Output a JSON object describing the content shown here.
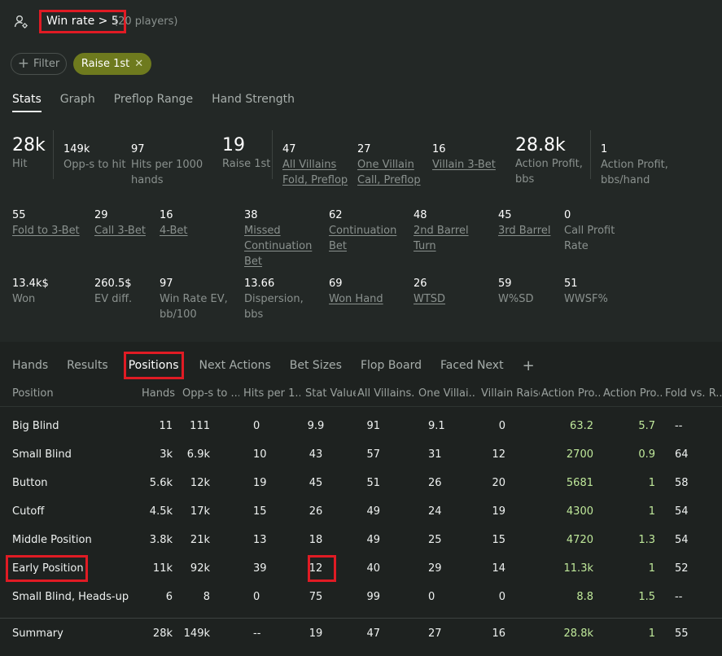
{
  "header": {
    "filter_title": "Win rate > 5",
    "players": "(20 players)",
    "filter_button": "Filter",
    "chip": "Raise 1st"
  },
  "subtabs": [
    "Stats",
    "Graph",
    "Preflop Range",
    "Hand Strength"
  ],
  "stats": {
    "hit": {
      "value": "28k",
      "label": "Hit"
    },
    "opps": {
      "value": "149k",
      "label": "Opp-s to hit"
    },
    "hits1000": {
      "value": "97",
      "label1": "Hits per 1000",
      "label2": "hands"
    },
    "raise1st": {
      "value": "19",
      "label": "Raise 1st"
    },
    "allvil": {
      "value": "47",
      "label1": "All Villains",
      "label2": "Fold, Preflop"
    },
    "onevil": {
      "value": "27",
      "label1": "One Villain",
      "label2": "Call, Preflop"
    },
    "vil3bet": {
      "value": "16",
      "label": "Villain 3-Bet"
    },
    "actprofit": {
      "value": "28.8k",
      "label1": "Action Profit,",
      "label2": "bbs"
    },
    "actprofhand": {
      "value": "1",
      "label1": "Action Profit,",
      "label2": "bbs/hand"
    },
    "fold3bet": {
      "value": "55",
      "label": "Fold to 3-Bet"
    },
    "call3bet": {
      "value": "29",
      "label": "Call 3-Bet"
    },
    "fourbet": {
      "value": "16",
      "label": "4-Bet"
    },
    "missedcb": {
      "value": "38",
      "label1": "Missed",
      "label2": "Continuation",
      "label3": "Bet"
    },
    "contbet": {
      "value": "62",
      "label1": "Continuation",
      "label2": "Bet"
    },
    "barrel2": {
      "value": "48",
      "label1": "2nd Barrel",
      "label2": "Turn"
    },
    "barrel3": {
      "value": "45",
      "label": "3rd Barrel"
    },
    "callprofit": {
      "value": "0",
      "label1": "Call Profit",
      "label2": "Rate"
    },
    "won": {
      "value": "13.4k$",
      "label": "Won"
    },
    "evdiff": {
      "value": "260.5$",
      "label": "EV diff."
    },
    "wrev": {
      "value": "97",
      "label1": "Win Rate EV,",
      "label2": "bb/100"
    },
    "dispersion": {
      "value": "13.66",
      "label1": "Dispersion,",
      "label2": "bbs"
    },
    "wonhand": {
      "value": "69",
      "label": "Won Hand"
    },
    "wtsd": {
      "value": "26",
      "label": "WTSD"
    },
    "wsd": {
      "value": "59",
      "label": "W%SD"
    },
    "wwsf": {
      "value": "51",
      "label": "WWSF%"
    }
  },
  "bottom_tabs": [
    "Hands",
    "Results",
    "Positions",
    "Next Actions",
    "Bet Sizes",
    "Flop Board",
    "Faced Next"
  ],
  "table": {
    "headers": [
      "Position",
      "Hands",
      "Opp-s to ...",
      "Hits per 1...",
      "Stat Value",
      "All Villains...",
      "One Villai...",
      "Villain Raise",
      "Action Pro...",
      "Action Pro...",
      "Fold vs. R..."
    ],
    "rows": [
      [
        "Big Blind",
        "11",
        "111",
        "0",
        "9.9",
        "91",
        "9.1",
        "0",
        "63.2",
        "5.7",
        "--"
      ],
      [
        "Small Blind",
        "3k",
        "6.9k",
        "10",
        "43",
        "57",
        "31",
        "12",
        "2700",
        "0.9",
        "64"
      ],
      [
        "Button",
        "5.6k",
        "12k",
        "19",
        "45",
        "51",
        "26",
        "20",
        "5681",
        "1",
        "58"
      ],
      [
        "Cutoff",
        "4.5k",
        "17k",
        "15",
        "26",
        "49",
        "24",
        "19",
        "4300",
        "1",
        "54"
      ],
      [
        "Middle Position",
        "3.8k",
        "21k",
        "13",
        "18",
        "49",
        "25",
        "15",
        "4720",
        "1.3",
        "54"
      ],
      [
        "Early Position",
        "11k",
        "92k",
        "39",
        "12",
        "40",
        "29",
        "14",
        "11.3k",
        "1",
        "52"
      ],
      [
        "Small Blind, Heads-up",
        "6",
        "8",
        "0",
        "75",
        "99",
        "0",
        "0",
        "8.8",
        "1.5",
        "--"
      ]
    ],
    "summary": [
      "Summary",
      "28k",
      "149k",
      "--",
      "19",
      "47",
      "27",
      "16",
      "28.8k",
      "1",
      "55"
    ]
  }
}
